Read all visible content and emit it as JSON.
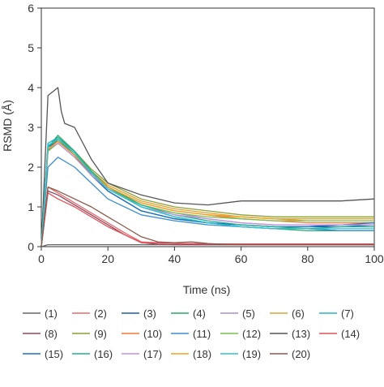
{
  "chart_data": {
    "type": "line",
    "xlabel": "Time (ns)",
    "ylabel": "RSMD (Å)",
    "xlim": [
      0,
      100
    ],
    "ylim": [
      0,
      6
    ],
    "xticks": [
      "0",
      "20",
      "40",
      "60",
      "80",
      "100"
    ],
    "yticks": [
      "0",
      "1",
      "2",
      "3",
      "4",
      "5",
      "6"
    ],
    "grid": false,
    "legend_position": "bottom",
    "series": [
      {
        "name": "(1)",
        "color": "#666666",
        "x": [
          0,
          2,
          5,
          10,
          15,
          20,
          30,
          40,
          50,
          60,
          70,
          80,
          90,
          100
        ],
        "y": [
          0,
          0.05,
          0.05,
          0.05,
          0.05,
          0.05,
          0.05,
          0.05,
          0.05,
          0.05,
          0.05,
          0.05,
          0.05,
          0.05
        ]
      },
      {
        "name": "(2)",
        "color": "#e8696e",
        "x": [
          0,
          2,
          5,
          10,
          15,
          20,
          25,
          30,
          40,
          50,
          60,
          70,
          80,
          90,
          100
        ],
        "y": [
          0,
          1.5,
          1.35,
          1.1,
          0.85,
          0.6,
          0.35,
          0.12,
          0.08,
          0.07,
          0.07,
          0.07,
          0.07,
          0.07,
          0.07
        ]
      },
      {
        "name": "(3)",
        "color": "#1f5fa8",
        "x": [
          0,
          2,
          5,
          10,
          15,
          20,
          30,
          40,
          50,
          60,
          70,
          80,
          90,
          100
        ],
        "y": [
          0,
          2.4,
          2.7,
          2.3,
          1.8,
          1.4,
          0.9,
          0.7,
          0.6,
          0.55,
          0.5,
          0.5,
          0.5,
          0.55
        ]
      },
      {
        "name": "(4)",
        "color": "#2aaa6a",
        "x": [
          0,
          2,
          5,
          10,
          15,
          20,
          30,
          40,
          50,
          60,
          70,
          80,
          90,
          100
        ],
        "y": [
          0,
          2.5,
          2.8,
          2.4,
          1.9,
          1.5,
          1.0,
          0.75,
          0.6,
          0.5,
          0.45,
          0.4,
          0.4,
          0.4
        ]
      },
      {
        "name": "(5)",
        "color": "#a98fd0",
        "x": [
          0,
          2,
          5,
          10,
          15,
          20,
          30,
          40,
          50,
          60,
          70,
          80,
          90,
          100
        ],
        "y": [
          0,
          2.5,
          2.65,
          2.3,
          1.85,
          1.5,
          1.05,
          0.85,
          0.7,
          0.6,
          0.55,
          0.55,
          0.5,
          0.5
        ]
      },
      {
        "name": "(6)",
        "color": "#e0a030",
        "x": [
          0,
          2,
          5,
          10,
          15,
          20,
          30,
          40,
          50,
          60,
          70,
          80,
          90,
          100
        ],
        "y": [
          0,
          2.5,
          2.7,
          2.35,
          1.9,
          1.55,
          1.15,
          0.95,
          0.85,
          0.75,
          0.7,
          0.65,
          0.65,
          0.65
        ]
      },
      {
        "name": "(7)",
        "color": "#25b5c5",
        "x": [
          0,
          2,
          5,
          10,
          15,
          20,
          30,
          40,
          50,
          60,
          70,
          80,
          90,
          100
        ],
        "y": [
          0,
          2.6,
          2.75,
          2.4,
          1.9,
          1.5,
          1.0,
          0.75,
          0.6,
          0.5,
          0.45,
          0.45,
          0.4,
          0.4
        ]
      },
      {
        "name": "(8)",
        "color": "#8b4a5a",
        "x": [
          0,
          2,
          5,
          10,
          15,
          20,
          25,
          30,
          35,
          40,
          50,
          60,
          70,
          80,
          90,
          100
        ],
        "y": [
          0,
          1.4,
          1.3,
          1.05,
          0.8,
          0.55,
          0.3,
          0.1,
          0.06,
          0.05,
          0.05,
          0.05,
          0.05,
          0.05,
          0.05,
          0.05
        ]
      },
      {
        "name": "(9)",
        "color": "#8aa038",
        "x": [
          0,
          2,
          5,
          10,
          15,
          20,
          30,
          40,
          50,
          60,
          70,
          80,
          90,
          100
        ],
        "y": [
          0,
          2.5,
          2.7,
          2.4,
          1.95,
          1.6,
          1.2,
          1.0,
          0.9,
          0.8,
          0.75,
          0.75,
          0.75,
          0.75
        ]
      },
      {
        "name": "(10)",
        "color": "#f07a3a",
        "x": [
          0,
          2,
          5,
          10,
          15,
          20,
          30,
          40,
          50,
          60,
          70,
          80,
          90,
          100
        ],
        "y": [
          0,
          2.5,
          2.65,
          2.3,
          1.85,
          1.5,
          1.1,
          0.9,
          0.8,
          0.7,
          0.65,
          0.6,
          0.6,
          0.6
        ]
      },
      {
        "name": "(11)",
        "color": "#3a8ed0",
        "x": [
          0,
          2,
          5,
          10,
          15,
          20,
          30,
          40,
          50,
          60,
          70,
          80,
          90,
          100
        ],
        "y": [
          0,
          2.0,
          2.25,
          2.0,
          1.6,
          1.2,
          0.8,
          0.65,
          0.55,
          0.5,
          0.45,
          0.45,
          0.4,
          0.4
        ]
      },
      {
        "name": "(12)",
        "color": "#78c050",
        "x": [
          0,
          2,
          5,
          10,
          15,
          20,
          30,
          40,
          50,
          60,
          70,
          80,
          90,
          100
        ],
        "y": [
          0,
          2.4,
          2.6,
          2.25,
          1.8,
          1.45,
          1.05,
          0.85,
          0.75,
          0.7,
          0.65,
          0.65,
          0.65,
          0.65
        ]
      },
      {
        "name": "(13)",
        "color": "#555555",
        "x": [
          0,
          2,
          5,
          6,
          7,
          10,
          15,
          20,
          30,
          40,
          50,
          60,
          70,
          80,
          90,
          100
        ],
        "y": [
          0,
          3.8,
          4.0,
          3.4,
          3.1,
          3.0,
          2.2,
          1.6,
          1.3,
          1.1,
          1.05,
          1.15,
          1.15,
          1.15,
          1.15,
          1.2
        ]
      },
      {
        "name": "(14)",
        "color": "#e0505a",
        "x": [
          0,
          2,
          5,
          10,
          15,
          20,
          25,
          30,
          40,
          50,
          60,
          70,
          80,
          90,
          100
        ],
        "y": [
          0,
          1.35,
          1.2,
          1.0,
          0.75,
          0.5,
          0.3,
          0.1,
          0.08,
          0.07,
          0.07,
          0.07,
          0.07,
          0.07,
          0.07
        ]
      },
      {
        "name": "(15)",
        "color": "#1a70b8",
        "x": [
          0,
          2,
          5,
          10,
          15,
          20,
          30,
          40,
          50,
          60,
          70,
          80,
          90,
          100
        ],
        "y": [
          0,
          2.5,
          2.65,
          2.3,
          1.8,
          1.4,
          0.9,
          0.7,
          0.6,
          0.55,
          0.5,
          0.5,
          0.55,
          0.6
        ]
      },
      {
        "name": "(16)",
        "color": "#20b090",
        "x": [
          0,
          2,
          5,
          10,
          15,
          20,
          30,
          40,
          50,
          60,
          70,
          80,
          90,
          100
        ],
        "y": [
          0,
          2.5,
          2.75,
          2.4,
          1.9,
          1.5,
          1.05,
          0.8,
          0.65,
          0.55,
          0.5,
          0.45,
          0.5,
          0.5
        ]
      },
      {
        "name": "(17)",
        "color": "#c090d8",
        "x": [
          0,
          2,
          5,
          10,
          15,
          20,
          30,
          40,
          50,
          60,
          70,
          80,
          90,
          100
        ],
        "y": [
          0,
          2.45,
          2.6,
          2.25,
          1.8,
          1.45,
          1.0,
          0.8,
          0.7,
          0.6,
          0.55,
          0.55,
          0.55,
          0.55
        ]
      },
      {
        "name": "(18)",
        "color": "#f0a020",
        "x": [
          0,
          2,
          5,
          10,
          15,
          20,
          30,
          40,
          50,
          60,
          70,
          80,
          90,
          100
        ],
        "y": [
          0,
          2.45,
          2.65,
          2.3,
          1.85,
          1.5,
          1.1,
          0.9,
          0.8,
          0.75,
          0.7,
          0.7,
          0.7,
          0.7
        ]
      },
      {
        "name": "(19)",
        "color": "#30c0d0",
        "x": [
          0,
          2,
          5,
          10,
          15,
          20,
          30,
          40,
          50,
          60,
          70,
          80,
          90,
          100
        ],
        "y": [
          0,
          2.55,
          2.7,
          2.35,
          1.85,
          1.45,
          1.0,
          0.75,
          0.6,
          0.5,
          0.45,
          0.45,
          0.45,
          0.45
        ]
      },
      {
        "name": "(20)",
        "color": "#8a5a4a",
        "x": [
          0,
          2,
          5,
          10,
          15,
          20,
          25,
          30,
          35,
          40,
          45,
          50,
          55,
          60,
          70,
          80,
          90,
          100
        ],
        "y": [
          0,
          1.5,
          1.4,
          1.2,
          1.0,
          0.75,
          0.5,
          0.25,
          0.12,
          0.1,
          0.12,
          0.08,
          0.06,
          0.05,
          0.05,
          0.05,
          0.05,
          0.05
        ]
      }
    ]
  }
}
